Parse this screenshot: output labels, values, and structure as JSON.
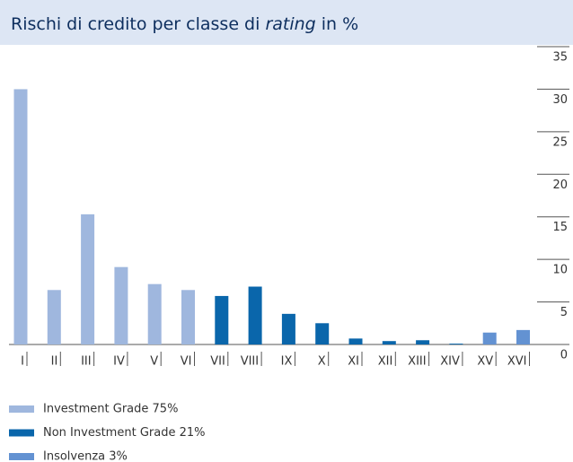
{
  "chart_data": {
    "type": "bar",
    "title": [
      "Rischi di credito per classe di",
      "rating",
      "in %"
    ],
    "categories": [
      "I",
      "II",
      "III",
      "IV",
      "V",
      "VI",
      "VII",
      "VIII",
      "IX",
      "X",
      "XI",
      "XII",
      "XIII",
      "XIV",
      "XV",
      "XVI"
    ],
    "values": [
      30,
      6.4,
      15.3,
      9.1,
      7.1,
      6.4,
      5.7,
      6.8,
      3.6,
      2.5,
      0.7,
      0.4,
      0.5,
      0.1,
      1.4,
      1.7
    ],
    "colors": [
      "#9fb7de",
      "#9fb7de",
      "#9fb7de",
      "#9fb7de",
      "#9fb7de",
      "#9fb7de",
      "#0a66ab",
      "#0a66ab",
      "#0a66ab",
      "#0a66ab",
      "#0a66ab",
      "#0a66ab",
      "#0a66ab",
      "#0a66ab",
      "#6392d2",
      "#6392d2"
    ],
    "ylim": [
      0,
      35
    ],
    "yticks": [
      0,
      5,
      10,
      15,
      20,
      25,
      30,
      35
    ],
    "legend": [
      {
        "label": "Investment Grade 75%",
        "color": "#9fb7de"
      },
      {
        "label": "Non Investment Grade 21%",
        "color": "#0a66ab"
      },
      {
        "label": "Insolvenza 3%",
        "color": "#6392d2"
      }
    ]
  }
}
